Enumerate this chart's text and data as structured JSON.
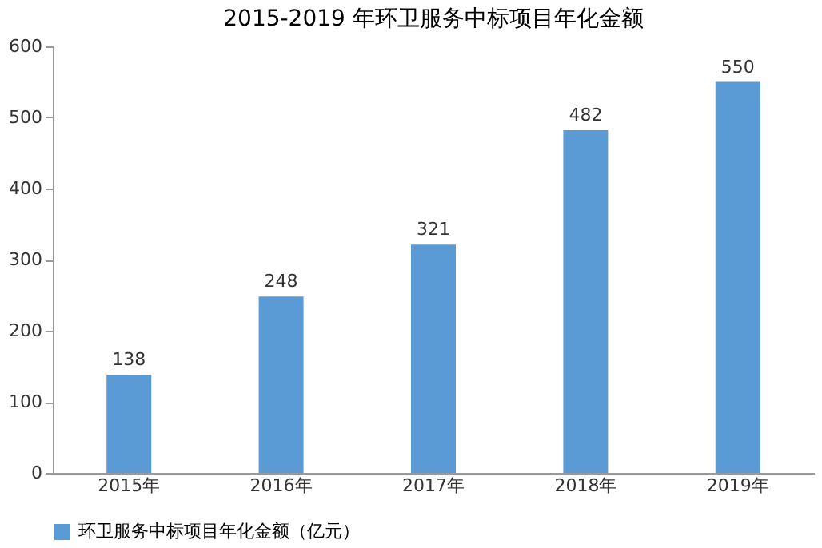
{
  "chart_data": {
    "type": "bar",
    "title": "2015-2019 年环卫服务中标项目年化金额",
    "categories": [
      "2015年",
      "2016年",
      "2017年",
      "2018年",
      "2019年"
    ],
    "series": [
      {
        "name": "环卫服务中标项目年化金额（亿元）",
        "color": "#5b9bd5",
        "values": [
          138,
          248,
          321,
          482,
          550
        ]
      }
    ],
    "ylim": [
      0,
      600
    ],
    "yticks": [
      0,
      100,
      200,
      300,
      400,
      500,
      600
    ],
    "grid": false,
    "data_labels": true,
    "legend": "bottom"
  }
}
